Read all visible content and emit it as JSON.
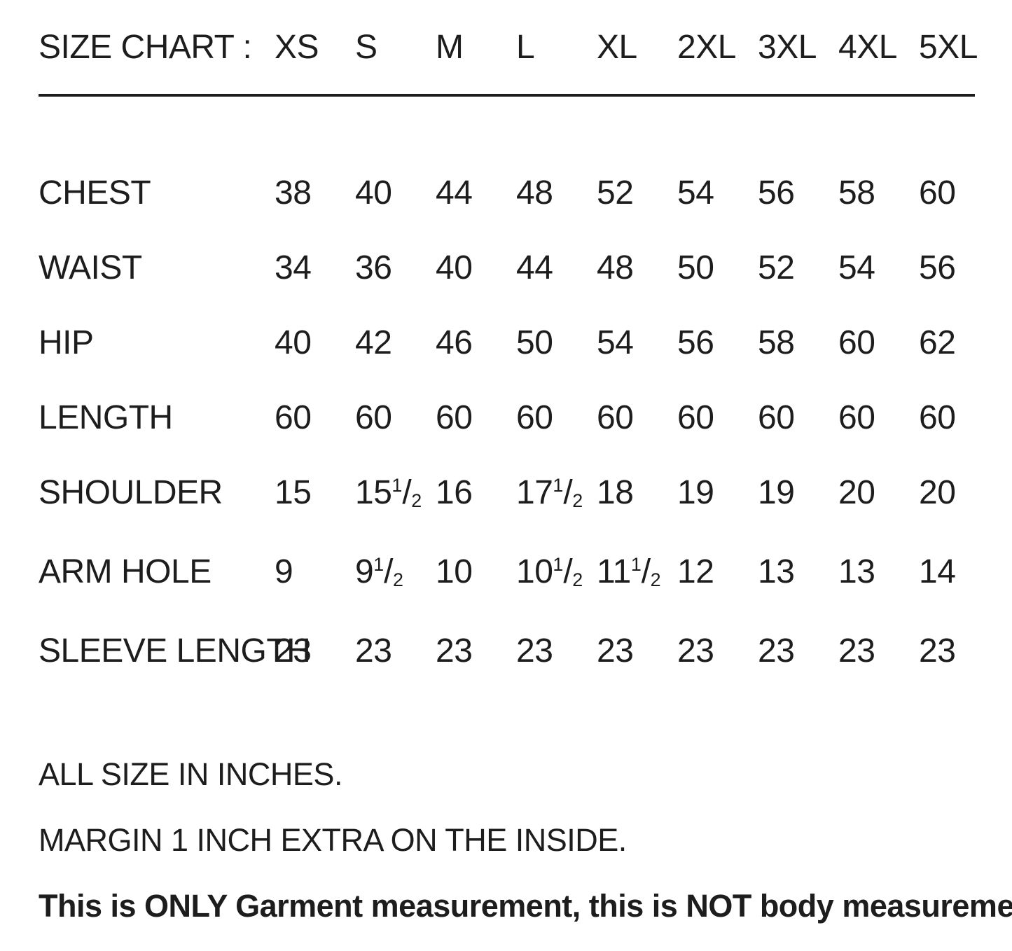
{
  "title": "SIZE CHART :",
  "sizes": [
    "XS",
    "S",
    "M",
    "L",
    "XL",
    "2XL",
    "3XL",
    "4XL",
    "5XL"
  ],
  "table": {
    "rows": [
      {
        "label": "CHEST",
        "values": [
          "38",
          "40",
          "44",
          "48",
          "52",
          "54",
          "56",
          "58",
          "60"
        ]
      },
      {
        "label": "WAIST",
        "values": [
          "34",
          "36",
          "40",
          "44",
          "48",
          "50",
          "52",
          "54",
          "56"
        ]
      },
      {
        "label": "HIP",
        "values": [
          "40",
          "42",
          "46",
          "50",
          "54",
          "56",
          "58",
          "60",
          "62"
        ]
      },
      {
        "label": "LENGTH",
        "values": [
          "60",
          "60",
          "60",
          "60",
          "60",
          "60",
          "60",
          "60",
          "60"
        ]
      },
      {
        "label": "SHOULDER",
        "values": [
          "15",
          "15 1/2",
          "16",
          "17 1/2",
          "18",
          "19",
          "19",
          "20",
          "20"
        ]
      },
      {
        "label": "ARM HOLE",
        "values": [
          "9",
          "9 1/2",
          "10",
          "10 1/2",
          "11 1/2",
          "12",
          "13",
          "13",
          "14"
        ]
      },
      {
        "label": "SLEEVE LENGTH",
        "values": [
          "23",
          "23",
          "23",
          "23",
          "23",
          "23",
          "23",
          "23",
          "23"
        ]
      }
    ]
  },
  "notes": [
    {
      "text": "ALL SIZE IN INCHES.",
      "bold": false
    },
    {
      "text": "MARGIN 1 INCH EXTRA ON THE INSIDE.",
      "bold": false
    },
    {
      "text": "This is ONLY Garment measurement, this is NOT body measurement.",
      "bold": true
    }
  ],
  "colors": {
    "text": "#1d1d1d",
    "background": "#ffffff",
    "rule": "#1d1d1d"
  }
}
